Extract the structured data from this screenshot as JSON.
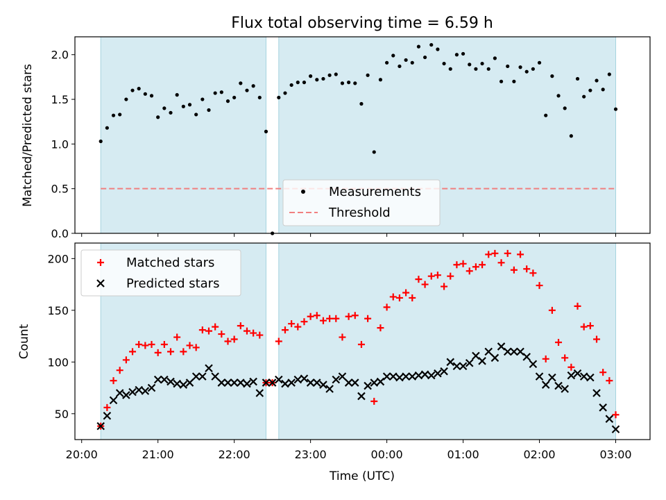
{
  "chart_data": {
    "title": "Flux total observing time = 6.59 h",
    "xlabel": "Time (UTC)",
    "x_ticks": [
      "20:00",
      "21:00",
      "22:00",
      "23:00",
      "00:00",
      "01:00",
      "02:00",
      "03:00"
    ],
    "time_x": [
      "20:15",
      "20:20",
      "20:25",
      "20:30",
      "20:35",
      "20:40",
      "20:45",
      "20:50",
      "20:55",
      "21:00",
      "21:05",
      "21:10",
      "21:15",
      "21:20",
      "21:25",
      "21:30",
      "21:35",
      "21:40",
      "21:45",
      "21:50",
      "21:55",
      "22:00",
      "22:05",
      "22:10",
      "22:15",
      "22:20",
      "22:25",
      "22:30",
      "22:35",
      "22:40",
      "22:45",
      "22:50",
      "22:55",
      "23:00",
      "23:05",
      "23:10",
      "23:15",
      "23:20",
      "23:25",
      "23:30",
      "23:35",
      "23:40",
      "23:45",
      "23:50",
      "23:55",
      "00:00",
      "00:05",
      "00:10",
      "00:15",
      "00:20",
      "00:25",
      "00:30",
      "00:35",
      "00:40",
      "00:45",
      "00:50",
      "00:55",
      "01:00",
      "01:05",
      "01:10",
      "01:15",
      "01:20",
      "01:25",
      "01:30",
      "01:35",
      "01:40",
      "01:45",
      "01:50",
      "01:55",
      "02:00",
      "02:05",
      "02:10",
      "02:15",
      "02:20",
      "02:25",
      "02:30",
      "02:35",
      "02:40",
      "02:45",
      "02:50",
      "02:55",
      "03:00"
    ],
    "shaded_intervals": [
      [
        "20:15",
        "22:25"
      ],
      [
        "22:35",
        "03:00"
      ]
    ],
    "charts": [
      {
        "type": "scatter",
        "ylabel": "Matched/Predicted stars",
        "ylim": [
          0,
          2.2
        ],
        "y_ticks": [
          0.0,
          0.5,
          1.0,
          1.5,
          2.0
        ],
        "threshold": 0.5,
        "legend_position": "bottom-center",
        "series": [
          {
            "name": "Measurements",
            "marker": "dot",
            "color": "#000000",
            "values": [
              1.03,
              1.18,
              1.32,
              1.33,
              1.5,
              1.6,
              1.62,
              1.56,
              1.54,
              1.3,
              1.4,
              1.35,
              1.55,
              1.42,
              1.44,
              1.33,
              1.5,
              1.38,
              1.57,
              1.58,
              1.48,
              1.52,
              1.68,
              1.6,
              1.65,
              1.52,
              1.14,
              0.0,
              1.52,
              1.57,
              1.66,
              1.69,
              1.69,
              1.76,
              1.72,
              1.73,
              1.77,
              1.78,
              1.68,
              1.69,
              1.68,
              1.45,
              1.77,
              0.91,
              1.72,
              1.91,
              1.99,
              1.87,
              1.94,
              1.91,
              2.09,
              1.97,
              2.11,
              2.06,
              1.9,
              1.84,
              2.0,
              2.01,
              1.89,
              1.84,
              1.9,
              1.84,
              1.96,
              1.7,
              1.87,
              1.7,
              1.86,
              1.81,
              1.84,
              1.91,
              1.32,
              1.76,
              1.54,
              1.4,
              1.09,
              1.73,
              1.53,
              1.6,
              1.71,
              1.61,
              1.78,
              1.39
            ]
          },
          {
            "name": "Threshold",
            "style": "dashed",
            "color": "#f08080"
          }
        ]
      },
      {
        "type": "scatter",
        "ylabel": "Count",
        "ylim": [
          25,
          215
        ],
        "y_ticks": [
          50,
          100,
          150,
          200
        ],
        "legend_position": "top-left",
        "series": [
          {
            "name": "Matched stars",
            "marker": "plus",
            "color": "#ff0000",
            "values": [
              38,
              56,
              82,
              92,
              102,
              110,
              117,
              116,
              117,
              109,
              117,
              110,
              124,
              110,
              116,
              114,
              131,
              130,
              134,
              127,
              120,
              122,
              135,
              130,
              128,
              126,
              80,
              80,
              120,
              131,
              137,
              134,
              139,
              144,
              145,
              140,
              142,
              142,
              124,
              144,
              145,
              117,
              142,
              62,
              133,
              153,
              163,
              162,
              167,
              162,
              180,
              175,
              183,
              184,
              173,
              183,
              194,
              195,
              188,
              192,
              194,
              204,
              205,
              196,
              205,
              189,
              204,
              190,
              186,
              174,
              103,
              150,
              119,
              104,
              95,
              154,
              134,
              135,
              122,
              90,
              82,
              49
            ]
          },
          {
            "name": "Predicted stars",
            "marker": "x",
            "color": "#000000",
            "values": [
              38,
              48,
              63,
              70,
              68,
              71,
              73,
              72,
              75,
              83,
              83,
              81,
              79,
              78,
              80,
              86,
              86,
              94,
              86,
              80,
              80,
              80,
              80,
              79,
              81,
              70,
              80,
              80,
              83,
              79,
              80,
              83,
              84,
              80,
              80,
              78,
              74,
              83,
              86,
              80,
              80,
              67,
              77,
              80,
              81,
              86,
              86,
              85,
              86,
              86,
              87,
              88,
              87,
              89,
              91,
              100,
              96,
              96,
              99,
              106,
              101,
              110,
              104,
              115,
              110,
              110,
              110,
              105,
              98,
              86,
              78,
              85,
              77,
              74,
              87,
              89,
              86,
              85,
              70,
              56,
              45,
              35
            ]
          }
        ]
      }
    ]
  }
}
